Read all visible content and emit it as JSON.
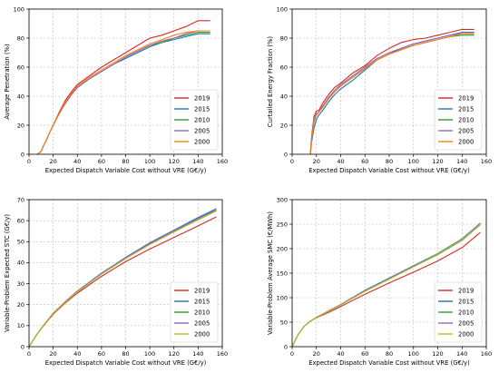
{
  "chart_data": [
    {
      "type": "line",
      "xlabel": "Expected Dispatch Variable Cost without VRE (G€/y)",
      "ylabel": "Average Penetration (%)",
      "xlim": [
        0,
        160
      ],
      "ylim": [
        0,
        100
      ],
      "xticks": [
        "0",
        "20",
        "40",
        "60",
        "80",
        "100",
        "120",
        "140",
        "160"
      ],
      "yticks": [
        "0",
        "20",
        "40",
        "60",
        "80",
        "100"
      ],
      "grid": true,
      "legend": "bottom-right",
      "series": [
        {
          "name": "2019",
          "color": "#d62728",
          "x": [
            7,
            10,
            12,
            14,
            16,
            20,
            25,
            30,
            35,
            40,
            50,
            60,
            70,
            80,
            90,
            100,
            110,
            120,
            130,
            140,
            150
          ],
          "y": [
            0,
            2,
            6,
            9,
            13,
            20,
            29,
            37,
            43,
            48,
            54,
            60,
            65,
            70,
            75,
            80,
            82,
            85,
            88,
            92,
            92
          ]
        },
        {
          "name": "2015",
          "color": "#1f77b4",
          "x": [
            7,
            10,
            12,
            14,
            16,
            20,
            25,
            30,
            35,
            40,
            50,
            60,
            70,
            80,
            90,
            100,
            110,
            120,
            130,
            140,
            150
          ],
          "y": [
            0,
            2,
            6,
            9,
            13,
            20,
            28,
            35,
            41,
            46,
            52,
            57,
            62,
            66,
            70,
            74,
            77,
            79,
            81,
            83,
            83
          ]
        },
        {
          "name": "2010",
          "color": "#2ca02c",
          "x": [
            7,
            10,
            12,
            14,
            16,
            20,
            25,
            30,
            35,
            40,
            50,
            60,
            70,
            80,
            90,
            100,
            110,
            120,
            130,
            140,
            150
          ],
          "y": [
            0,
            2,
            6,
            9,
            13,
            20,
            28,
            35,
            41,
            46,
            52,
            57,
            62,
            67,
            71,
            75,
            77,
            80,
            82,
            84,
            84
          ]
        },
        {
          "name": "2005",
          "color": "#9467bd",
          "x": [
            7,
            10,
            12,
            14,
            16,
            20,
            25,
            30,
            35,
            40,
            50,
            60,
            70,
            80,
            90,
            100,
            110,
            120,
            130,
            140,
            150
          ],
          "y": [
            0,
            2,
            6,
            9,
            13,
            20,
            28,
            35,
            41,
            46,
            52,
            57,
            62,
            67,
            71,
            75,
            78,
            80,
            83,
            85,
            85
          ]
        },
        {
          "name": "2000",
          "color": "#ff7f0e",
          "x": [
            7,
            10,
            12,
            14,
            16,
            20,
            25,
            30,
            35,
            40,
            50,
            60,
            70,
            80,
            90,
            100,
            110,
            120,
            130,
            140,
            150
          ],
          "y": [
            0,
            2,
            6,
            9,
            13,
            20,
            28,
            36,
            42,
            47,
            53,
            58,
            63,
            68,
            72,
            76,
            79,
            82,
            84,
            85,
            85
          ]
        }
      ]
    },
    {
      "type": "line",
      "xlabel": "Expected Dispatch Variable Cost without VRE (G€/y)",
      "ylabel": "Curtailed Energy Fraction (%)",
      "xlim": [
        0,
        160
      ],
      "ylim": [
        0,
        100
      ],
      "xticks": [
        "0",
        "20",
        "40",
        "60",
        "80",
        "100",
        "120",
        "140",
        "160"
      ],
      "yticks": [
        "0",
        "20",
        "40",
        "60",
        "80",
        "100"
      ],
      "grid": true,
      "legend": "bottom-right",
      "series": [
        {
          "name": "2019",
          "color": "#d62728",
          "x": [
            15,
            16,
            18,
            20,
            22,
            25,
            30,
            35,
            40,
            50,
            60,
            70,
            80,
            90,
            100,
            110,
            120,
            130,
            140,
            150
          ],
          "y": [
            0,
            12,
            26,
            30,
            30,
            35,
            41,
            46,
            49,
            56,
            61,
            68,
            73,
            77,
            79,
            80,
            82,
            84,
            86,
            86
          ]
        },
        {
          "name": "2015",
          "color": "#1f77b4",
          "x": [
            15,
            16,
            18,
            20,
            22,
            25,
            30,
            35,
            40,
            50,
            60,
            70,
            80,
            90,
            100,
            110,
            120,
            130,
            140,
            150
          ],
          "y": [
            0,
            8,
            18,
            24,
            27,
            30,
            36,
            41,
            45,
            51,
            58,
            65,
            69,
            73,
            76,
            78,
            80,
            82,
            84,
            84
          ]
        },
        {
          "name": "2010",
          "color": "#2ca02c",
          "x": [
            15,
            16,
            18,
            20,
            22,
            25,
            30,
            35,
            40,
            50,
            60,
            70,
            80,
            90,
            100,
            110,
            120,
            130,
            140,
            150
          ],
          "y": [
            0,
            10,
            22,
            27,
            29,
            33,
            38,
            43,
            47,
            53,
            59,
            65,
            69,
            72,
            75,
            77,
            79,
            81,
            82,
            82
          ]
        },
        {
          "name": "2005",
          "color": "#9467bd",
          "x": [
            15,
            16,
            18,
            20,
            22,
            25,
            30,
            35,
            40,
            50,
            60,
            70,
            80,
            90,
            100,
            110,
            120,
            130,
            140,
            150
          ],
          "y": [
            0,
            11,
            24,
            28,
            29,
            33,
            39,
            44,
            48,
            54,
            60,
            66,
            70,
            73,
            76,
            78,
            80,
            82,
            83,
            83
          ]
        },
        {
          "name": "2000",
          "color": "#ff7f0e",
          "x": [
            15,
            16,
            18,
            20,
            22,
            25,
            30,
            35,
            40,
            50,
            60,
            70,
            80,
            90,
            100,
            110,
            120,
            130,
            140,
            150
          ],
          "y": [
            0,
            10,
            23,
            27,
            29,
            32,
            38,
            43,
            47,
            53,
            59,
            65,
            69,
            72,
            75,
            77,
            79,
            81,
            83,
            83
          ]
        }
      ]
    },
    {
      "type": "line",
      "xlabel": "Expected Dispatch Variable Cost without VRE (G€/y)",
      "ylabel": "Variable-Problem Expected STC (G€/y)",
      "xlim": [
        0,
        160
      ],
      "ylim": [
        0,
        70
      ],
      "xticks": [
        "0",
        "20",
        "40",
        "60",
        "80",
        "100",
        "120",
        "140",
        "160"
      ],
      "yticks": [
        "0",
        "10",
        "20",
        "30",
        "40",
        "50",
        "60",
        "70"
      ],
      "grid": true,
      "legend": "bottom-right",
      "series": [
        {
          "name": "2019",
          "color": "#d62728",
          "x": [
            0,
            5,
            10,
            20,
            30,
            40,
            60,
            80,
            100,
            120,
            140,
            155
          ],
          "y": [
            0,
            4.5,
            8.5,
            15.5,
            20.8,
            25.5,
            33.5,
            40.5,
            46.5,
            52,
            57.5,
            61.8
          ]
        },
        {
          "name": "2015",
          "color": "#1f77b4",
          "x": [
            0,
            5,
            10,
            20,
            30,
            40,
            60,
            80,
            100,
            120,
            140,
            155
          ],
          "y": [
            0,
            4.6,
            8.7,
            16,
            21.5,
            26.5,
            35,
            42.5,
            49.5,
            55.5,
            61.5,
            65.7
          ]
        },
        {
          "name": "2010",
          "color": "#2ca02c",
          "x": [
            0,
            5,
            10,
            20,
            30,
            40,
            60,
            80,
            100,
            120,
            140,
            155
          ],
          "y": [
            0,
            4.6,
            8.7,
            15.9,
            21.3,
            26.2,
            34.6,
            42,
            48.8,
            54.8,
            60.6,
            64.8
          ]
        },
        {
          "name": "2005",
          "color": "#9467bd",
          "x": [
            0,
            5,
            10,
            20,
            30,
            40,
            60,
            80,
            100,
            120,
            140,
            155
          ],
          "y": [
            0,
            4.6,
            8.7,
            16,
            21.4,
            26.4,
            34.8,
            42.3,
            49.2,
            55.2,
            61.1,
            65.3
          ]
        },
        {
          "name": "2000",
          "color": "#bcbd22",
          "x": [
            0,
            5,
            10,
            20,
            30,
            40,
            60,
            80,
            100,
            120,
            140,
            155
          ],
          "y": [
            0,
            4.6,
            8.7,
            15.9,
            21.2,
            26.1,
            34.5,
            41.9,
            48.6,
            54.6,
            60.4,
            64.6
          ]
        }
      ]
    },
    {
      "type": "line",
      "xlabel": "Expected Dispatch Variable Cost without VRE (G€/y)",
      "ylabel": "Variable-Problem Average SMC (€/MWh)",
      "xlim": [
        0,
        160
      ],
      "ylim": [
        0,
        300
      ],
      "xticks": [
        "0",
        "20",
        "40",
        "60",
        "80",
        "100",
        "120",
        "140",
        "160"
      ],
      "yticks": [
        "0",
        "50",
        "100",
        "150",
        "200",
        "250",
        "300"
      ],
      "grid": true,
      "legend": "bottom-right",
      "series": [
        {
          "name": "2019",
          "color": "#d62728",
          "x": [
            0,
            5,
            10,
            15,
            20,
            30,
            40,
            60,
            80,
            100,
            120,
            140,
            155
          ],
          "y": [
            0,
            25,
            42,
            52,
            59,
            70,
            82,
            107,
            130,
            152,
            175,
            202,
            233
          ]
        },
        {
          "name": "2015",
          "color": "#1f77b4",
          "x": [
            0,
            5,
            10,
            15,
            20,
            30,
            40,
            60,
            80,
            100,
            120,
            140,
            155
          ],
          "y": [
            0,
            25,
            42,
            52,
            60,
            73,
            86,
            115,
            140,
            165,
            190,
            220,
            252
          ]
        },
        {
          "name": "2010",
          "color": "#2ca02c",
          "x": [
            0,
            5,
            10,
            15,
            20,
            30,
            40,
            60,
            80,
            100,
            120,
            140,
            155
          ],
          "y": [
            0,
            25,
            42,
            52,
            60,
            72,
            85,
            113,
            138,
            163,
            188,
            217,
            249
          ]
        },
        {
          "name": "2005",
          "color": "#9467bd",
          "x": [
            0,
            5,
            10,
            15,
            20,
            30,
            40,
            60,
            80,
            100,
            120,
            140,
            155
          ],
          "y": [
            0,
            25,
            42,
            52,
            60,
            73,
            86,
            114,
            139,
            164,
            189,
            219,
            251
          ]
        },
        {
          "name": "2000",
          "color": "#bcbd22",
          "x": [
            0,
            5,
            10,
            15,
            20,
            30,
            40,
            60,
            80,
            100,
            120,
            140,
            155
          ],
          "y": [
            0,
            25,
            42,
            52,
            60,
            72,
            85,
            113,
            138,
            163,
            189,
            218,
            250
          ]
        }
      ]
    }
  ]
}
